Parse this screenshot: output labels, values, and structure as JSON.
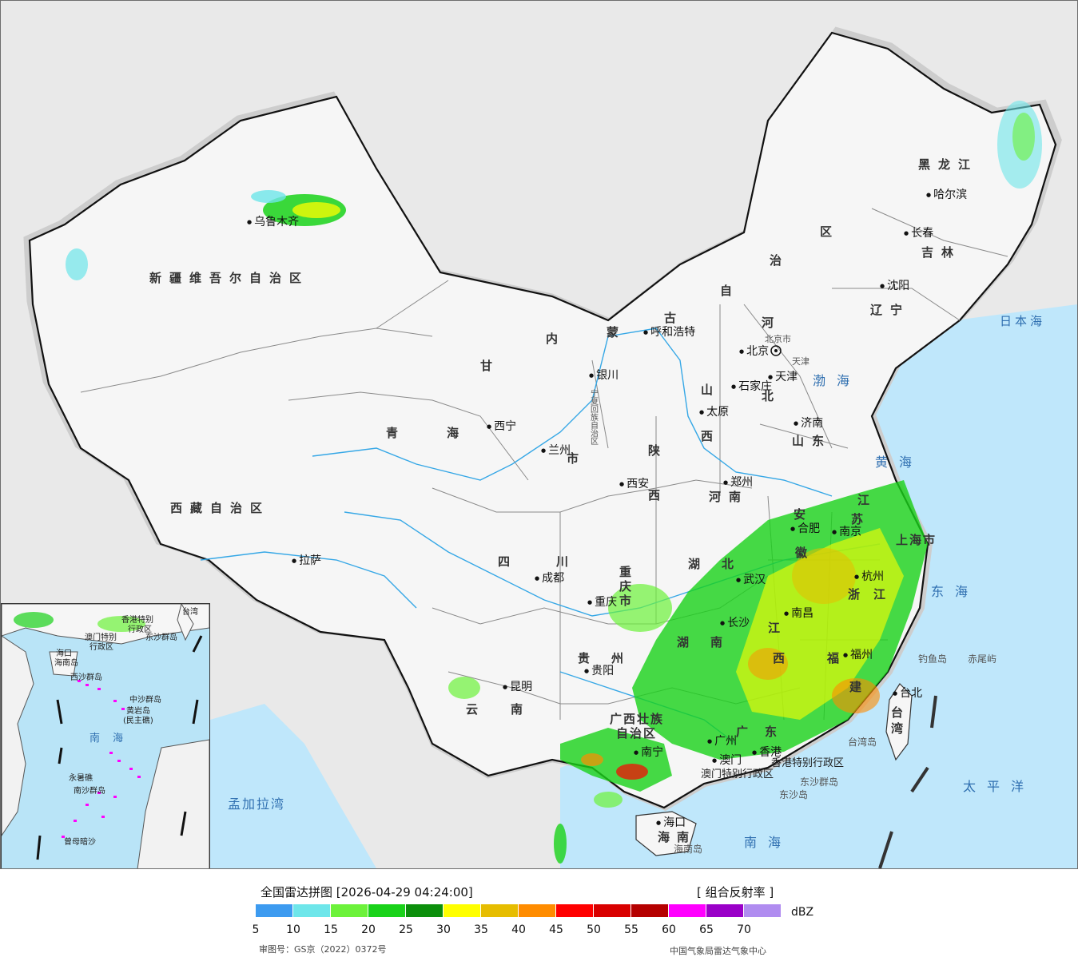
{
  "map": {
    "provinces": [
      {
        "id": "xinjiang",
        "label": "新疆维吾尔自治区"
      },
      {
        "id": "xizang",
        "label": "西藏自治区"
      },
      {
        "id": "qinghai-1",
        "label": "青"
      },
      {
        "id": "qinghai-2",
        "label": "海"
      },
      {
        "id": "gansu",
        "label": "甘"
      },
      {
        "id": "sichuan-1",
        "label": "四"
      },
      {
        "id": "sichuan-2",
        "label": "川"
      },
      {
        "id": "yunnan-1",
        "label": "云"
      },
      {
        "id": "yunnan-2",
        "label": "南"
      },
      {
        "id": "nmg-1",
        "label": "内"
      },
      {
        "id": "nmg-2",
        "label": "蒙"
      },
      {
        "id": "nmg-3",
        "label": "古"
      },
      {
        "id": "nmg-4",
        "label": "自"
      },
      {
        "id": "nmg-5",
        "label": "治"
      },
      {
        "id": "nmg-6",
        "label": "区"
      },
      {
        "id": "heilongjiang",
        "label": "黑龙江"
      },
      {
        "id": "jilin",
        "label": "吉林"
      },
      {
        "id": "liaoning",
        "label": "辽宁"
      },
      {
        "id": "hebei-1",
        "label": "河"
      },
      {
        "id": "hebei-2",
        "label": "北"
      },
      {
        "id": "shanxi-1",
        "label": "山"
      },
      {
        "id": "shanxi-2",
        "label": "西"
      },
      {
        "id": "shaanxi-1",
        "label": "陕"
      },
      {
        "id": "shaanxi-2",
        "label": "西"
      },
      {
        "id": "shandong",
        "label": "山东"
      },
      {
        "id": "henan",
        "label": "河南"
      },
      {
        "id": "hubei-1",
        "label": "湖"
      },
      {
        "id": "hubei-2",
        "label": "北"
      },
      {
        "id": "hunan-1",
        "label": "湖"
      },
      {
        "id": "hunan-2",
        "label": "南"
      },
      {
        "id": "jiangxi-1",
        "label": "江"
      },
      {
        "id": "jiangxi-2",
        "label": "西"
      },
      {
        "id": "anhui-1",
        "label": "安"
      },
      {
        "id": "anhui-2",
        "label": "徽"
      },
      {
        "id": "jiangsu-1",
        "label": "江"
      },
      {
        "id": "jiangsu-2",
        "label": "苏"
      },
      {
        "id": "zhejiang-1",
        "label": "浙"
      },
      {
        "id": "zhejiang-2",
        "label": "江"
      },
      {
        "id": "fujian-1",
        "label": "福"
      },
      {
        "id": "fujian-2",
        "label": "建"
      },
      {
        "id": "guangdong-1",
        "label": "广"
      },
      {
        "id": "guangdong-2",
        "label": "东"
      },
      {
        "id": "guangxi-1",
        "label": "广西壮族"
      },
      {
        "id": "guangxi-2",
        "label": "自治区"
      },
      {
        "id": "guizhou-1",
        "label": "贵"
      },
      {
        "id": "guizhou-2",
        "label": "州"
      },
      {
        "id": "chongqing-1",
        "label": "重"
      },
      {
        "id": "chongqing-2",
        "label": "庆"
      },
      {
        "id": "chongqing-3",
        "label": "市"
      },
      {
        "id": "shanghai",
        "label": "上海市"
      },
      {
        "id": "taiwan-1",
        "label": "台"
      },
      {
        "id": "taiwan-2",
        "label": "湾"
      },
      {
        "id": "hainan-1",
        "label": "海"
      },
      {
        "id": "hainan-2",
        "label": "南"
      },
      {
        "id": "tianjin",
        "label": "天津"
      },
      {
        "id": "beijing",
        "label": "北京市"
      },
      {
        "id": "ningxia",
        "label": "宁夏回族自治区"
      },
      {
        "id": "gansu-city-3",
        "label": "市"
      }
    ],
    "cities": [
      {
        "id": "urumqi",
        "label": "乌鲁木齐"
      },
      {
        "id": "lhasa",
        "label": "拉萨"
      },
      {
        "id": "xining",
        "label": "西宁"
      },
      {
        "id": "lanzhou",
        "label": "兰州"
      },
      {
        "id": "yinchuan",
        "label": "银川"
      },
      {
        "id": "hohhot",
        "label": "呼和浩特"
      },
      {
        "id": "beijing",
        "label": "北京"
      },
      {
        "id": "tianjin-c",
        "label": "天津"
      },
      {
        "id": "shijiazhuang",
        "label": "石家庄"
      },
      {
        "id": "taiyuan",
        "label": "太原"
      },
      {
        "id": "jinan",
        "label": "济南"
      },
      {
        "id": "zhengzhou",
        "label": "郑州"
      },
      {
        "id": "xian",
        "label": "西安"
      },
      {
        "id": "chengdu",
        "label": "成都"
      },
      {
        "id": "chongqing",
        "label": "重庆"
      },
      {
        "id": "guiyang",
        "label": "贵阳"
      },
      {
        "id": "kunming",
        "label": "昆明"
      },
      {
        "id": "nanning",
        "label": "南宁"
      },
      {
        "id": "guangzhou",
        "label": "广州"
      },
      {
        "id": "macao",
        "label": "澳门"
      },
      {
        "id": "hongkong",
        "label": "香港"
      },
      {
        "id": "haikou",
        "label": "海口"
      },
      {
        "id": "wuhan",
        "label": "武汉"
      },
      {
        "id": "changsha",
        "label": "长沙"
      },
      {
        "id": "nanchang",
        "label": "南昌"
      },
      {
        "id": "hefei",
        "label": "合肥"
      },
      {
        "id": "nanjing",
        "label": "南京"
      },
      {
        "id": "hangzhou",
        "label": "杭州"
      },
      {
        "id": "fuzhou",
        "label": "福州"
      },
      {
        "id": "taipei",
        "label": "台北"
      },
      {
        "id": "shenyang",
        "label": "沈阳"
      },
      {
        "id": "changchun",
        "label": "长春"
      },
      {
        "id": "harbin",
        "label": "哈尔滨"
      }
    ],
    "seas": [
      {
        "id": "japan-sea",
        "label": "日本海"
      },
      {
        "id": "bohai",
        "label": "渤海"
      },
      {
        "id": "yellow-sea",
        "label": "黄海"
      },
      {
        "id": "east-sea",
        "label": "东海"
      },
      {
        "id": "pacific",
        "label": "太平洋"
      },
      {
        "id": "south-sea",
        "label": "南海"
      },
      {
        "id": "bengal",
        "label": "孟加拉湾"
      }
    ],
    "islands": [
      {
        "id": "diaoyu",
        "label": "钓鱼岛"
      },
      {
        "id": "chiwei",
        "label": "赤尾屿"
      },
      {
        "id": "taiwan-island",
        "label": "台湾岛"
      },
      {
        "id": "hainan-island",
        "label": "海南岛"
      },
      {
        "id": "dongsha-qundao",
        "label": "东沙群岛"
      },
      {
        "id": "dongsha-dao",
        "label": "东沙岛"
      },
      {
        "id": "hk-sar",
        "label": "香港特别行政区"
      },
      {
        "id": "macao-sar",
        "label": "澳门特别行政区"
      }
    ],
    "inset": {
      "labels": [
        {
          "id": "in-hk",
          "label": "香港特别"
        },
        {
          "id": "in-hk2",
          "label": "行政区"
        },
        {
          "id": "in-macao",
          "label": "澳门特别"
        },
        {
          "id": "in-macao2",
          "label": "行政区"
        },
        {
          "id": "in-dongsha",
          "label": "东沙群岛"
        },
        {
          "id": "in-taiwan",
          "label": "台湾"
        },
        {
          "id": "in-haikou",
          "label": "海口"
        },
        {
          "id": "in-hainan",
          "label": "海南岛"
        },
        {
          "id": "in-xisha",
          "label": "西沙群岛"
        },
        {
          "id": "in-zhongsha",
          "label": "中沙群岛"
        },
        {
          "id": "in-huangyan",
          "label": "黄岩岛"
        },
        {
          "id": "in-huangyan2",
          "label": "(民主礁)"
        },
        {
          "id": "in-south-sea",
          "label": "南海"
        },
        {
          "id": "in-yongshu",
          "label": "永暑礁"
        },
        {
          "id": "in-nansha",
          "label": "南沙群岛"
        },
        {
          "id": "in-zengmu",
          "label": "曾母暗沙"
        }
      ]
    }
  },
  "legend": {
    "title": "全国雷达拼图 [2026-04-29 04:24:00]",
    "product": "[ 组合反射率 ]",
    "unit": "dBZ",
    "colors": [
      "#3d9bf0",
      "#6ee6ea",
      "#6cf23a",
      "#19d219",
      "#0b8f0b",
      "#ffff00",
      "#e6bd00",
      "#ff8c00",
      "#ff0000",
      "#d90000",
      "#b50000",
      "#ff00ff",
      "#9a00c8",
      "#b08cf0"
    ],
    "ticks": [
      "5",
      "10",
      "15",
      "20",
      "25",
      "30",
      "35",
      "40",
      "45",
      "50",
      "55",
      "60",
      "65",
      "70"
    ],
    "approval": "审图号：GS京（2022）0372号",
    "credit": "中国气象局雷达气象中心"
  }
}
